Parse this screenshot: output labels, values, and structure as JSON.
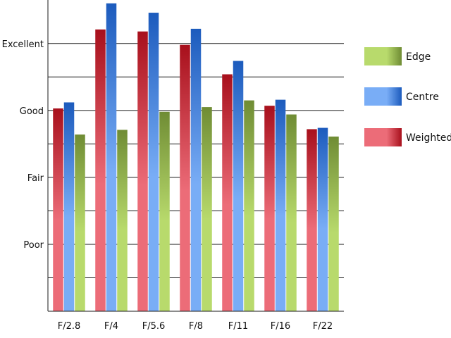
{
  "chart_data": {
    "type": "bar",
    "categories": [
      "F/2.8",
      "F/4",
      "F/5.6",
      "F/8",
      "F/11",
      "F/16",
      "F/22"
    ],
    "series": [
      {
        "name": "Weighted",
        "values": [
          3.03,
          4.21,
          4.18,
          3.98,
          3.54,
          3.07,
          2.72
        ]
      },
      {
        "name": "Centre",
        "values": [
          3.12,
          4.6,
          4.46,
          4.22,
          3.74,
          3.16,
          2.74
        ]
      },
      {
        "name": "Edge",
        "values": [
          2.64,
          2.71,
          2.98,
          3.05,
          3.15,
          2.94,
          2.61
        ]
      }
    ],
    "ylim": [
      0,
      4.65
    ],
    "yticks": [
      {
        "value": 1,
        "label": "Poor"
      },
      {
        "value": 2,
        "label": "Fair"
      },
      {
        "value": 3,
        "label": "Good"
      },
      {
        "value": 4,
        "label": "Excellent"
      }
    ],
    "minor_gridlines": [
      0.5,
      1.5,
      2.5,
      3.5
    ],
    "legend": [
      {
        "label": "Edge",
        "series": "Edge"
      },
      {
        "label": "Centre",
        "series": "Centre"
      },
      {
        "label": "Weighted",
        "series": "Weighted"
      }
    ],
    "legend_position": "right",
    "grid": true,
    "colors": {
      "Weighted": {
        "light": "#ec6c78",
        "dark": "#a8101c"
      },
      "Centre": {
        "light": "#79adf6",
        "dark": "#1c5bbd"
      },
      "Edge": {
        "light": "#b8da6c",
        "dark": "#6f8c34"
      }
    }
  }
}
